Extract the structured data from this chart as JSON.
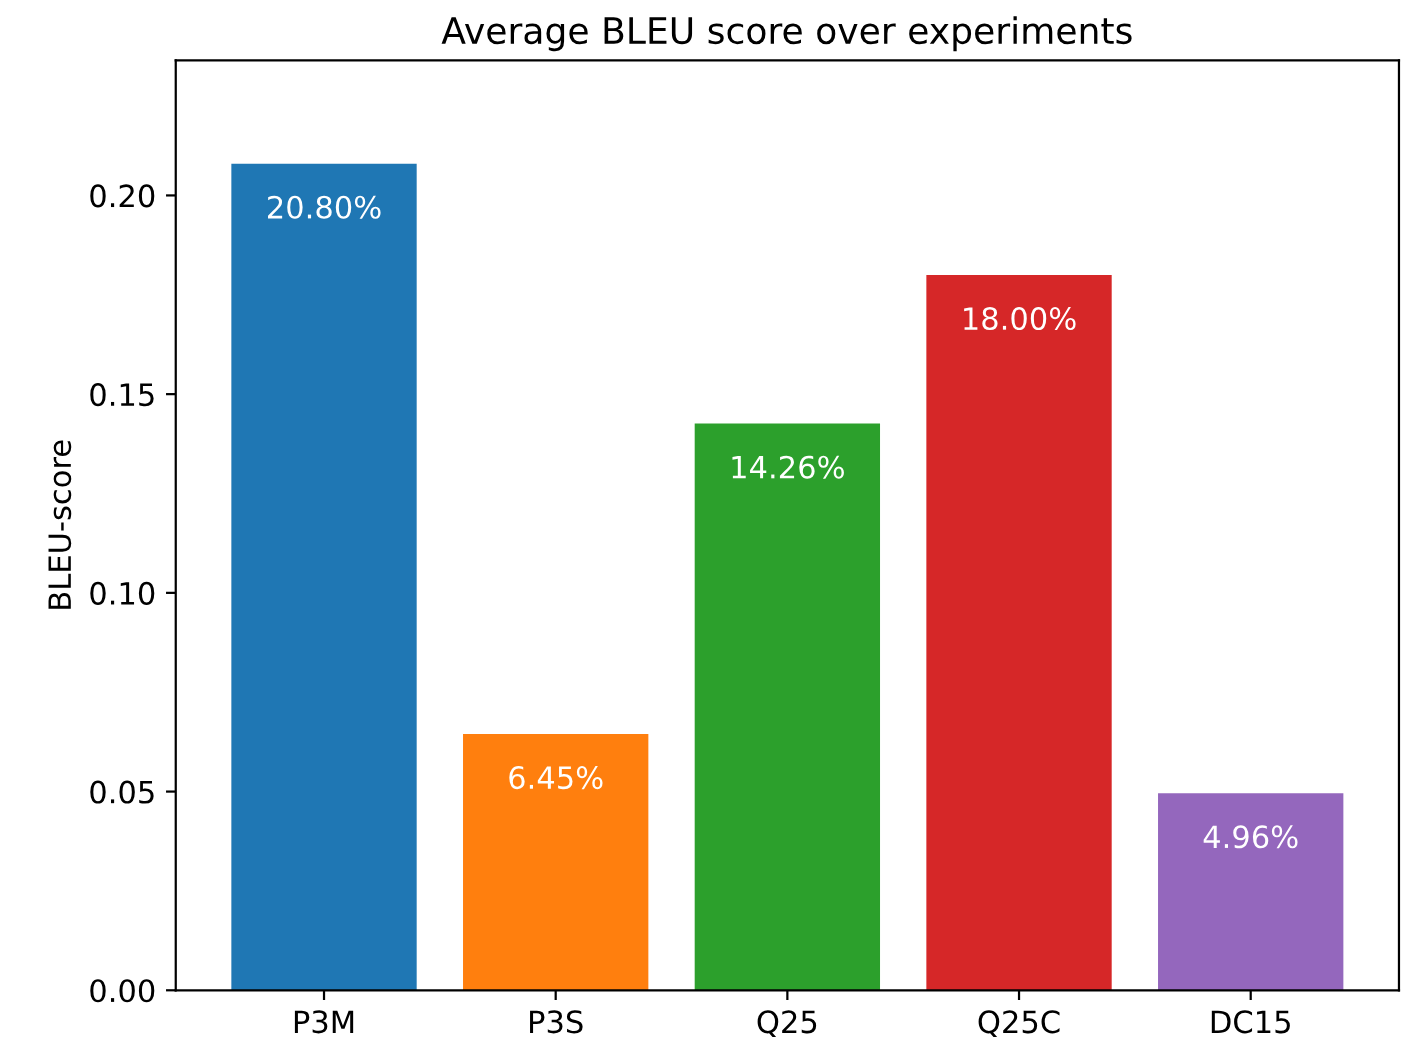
{
  "chart_data": {
    "type": "bar",
    "title": "Average BLEU score over experiments",
    "ylabel": "BLEU-score",
    "categories": [
      "P3M",
      "P3S",
      "Q25",
      "Q25C",
      "DC15"
    ],
    "values": [
      0.208,
      0.0645,
      0.1426,
      0.18,
      0.0496
    ],
    "colors": [
      "#1f77b4",
      "#ff7f0e",
      "#2ca02c",
      "#d62728",
      "#9467bd"
    ],
    "value_labels": [
      "20.80%",
      "6.45%",
      "14.26%",
      "18.00%",
      "4.96%"
    ],
    "ylim": [
      0,
      0.234
    ],
    "yticks": [
      {
        "value": 0,
        "label": "0.00"
      },
      {
        "value": 0.05,
        "label": "0.05"
      },
      {
        "value": 0.1,
        "label": "0.10"
      },
      {
        "value": 0.15,
        "label": "0.15"
      },
      {
        "value": 0.2,
        "label": "0.20"
      }
    ],
    "grid": false
  }
}
